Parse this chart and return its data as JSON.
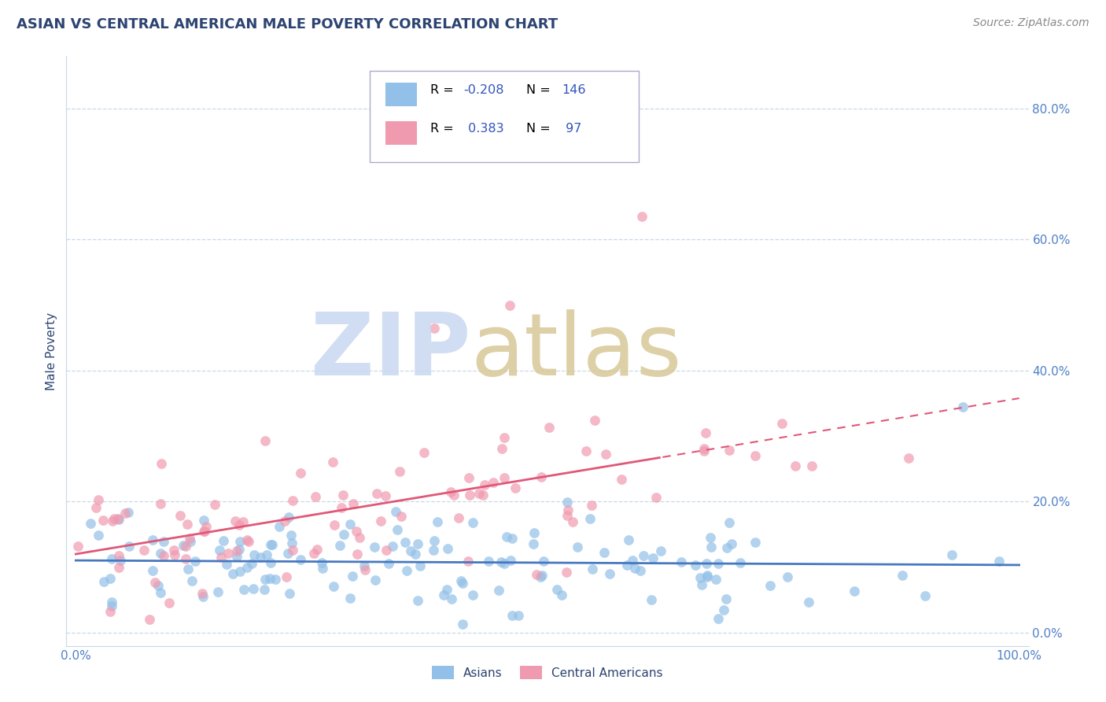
{
  "title": "ASIAN VS CENTRAL AMERICAN MALE POVERTY CORRELATION CHART",
  "source": "Source: ZipAtlas.com",
  "ylabel": "Male Poverty",
  "asian_R": -0.208,
  "asian_N": 146,
  "central_R": 0.383,
  "central_N": 97,
  "asian_color": "#92C0E8",
  "central_color": "#F09AB0",
  "asian_line_color": "#4878C0",
  "central_line_color": "#E05878",
  "background_color": "#ffffff",
  "title_color": "#2D4472",
  "axis_label_color": "#5080C8",
  "grid_color": "#C8D8E8",
  "ytick_vals": [
    0.0,
    0.2,
    0.4,
    0.6,
    0.8
  ],
  "ytick_labels": [
    "0.0%",
    "20.0%",
    "40.0%",
    "60.0%",
    "80.0%"
  ],
  "xlim": [
    -0.01,
    1.01
  ],
  "ylim": [
    -0.02,
    0.88
  ],
  "legend_R_color": "#3355BB",
  "legend_N_color": "#3355BB",
  "watermark_zip_color": "#C8D8F0",
  "watermark_atlas_color": "#D8C898"
}
